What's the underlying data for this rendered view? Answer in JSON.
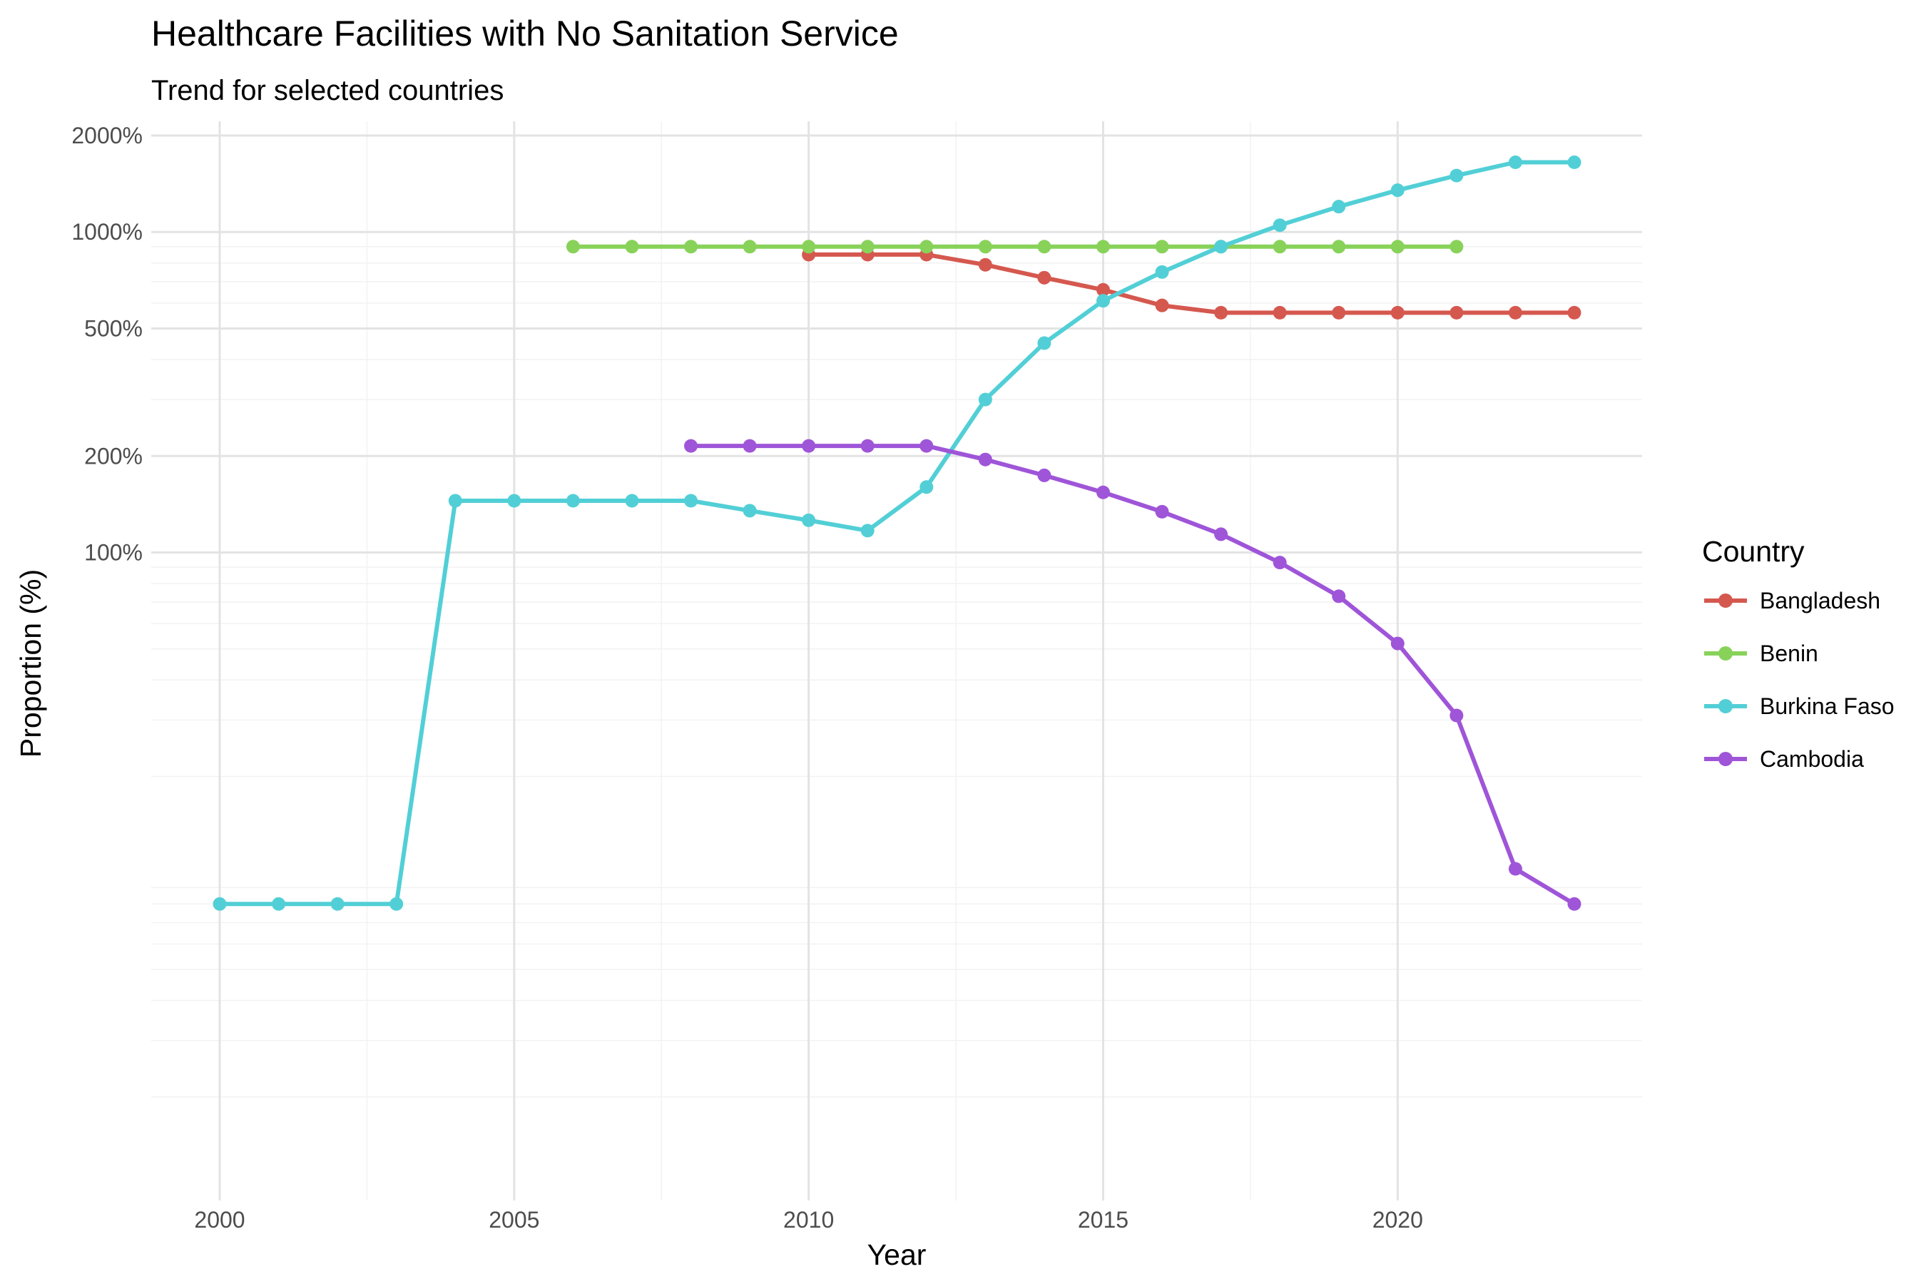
{
  "chart_data": {
    "type": "line",
    "title": "Healthcare Facilities with No Sanitation Service",
    "subtitle": "Trend for selected countries",
    "xlabel": "Year",
    "ylabel": "Proportion (%)",
    "xlim": [
      2000,
      2023
    ],
    "ylim": [
      1,
      2000
    ],
    "y_scale": "log10",
    "x_ticks": [
      2000,
      2005,
      2010,
      2015,
      2020
    ],
    "x_tick_labels": [
      "2000",
      "2005",
      "2010",
      "2015",
      "2020"
    ],
    "y_ticks": [
      100,
      200,
      500,
      1000,
      2000
    ],
    "y_tick_labels": [
      "100%",
      "200%",
      "500%",
      "1000%",
      "2000%"
    ],
    "grid": true,
    "legend": {
      "title": "Country",
      "position": "right"
    },
    "series": [
      {
        "name": "Bangladesh",
        "color": "#d5584f",
        "x": [
          2010,
          2011,
          2012,
          2013,
          2014,
          2015,
          2016,
          2017,
          2018,
          2019,
          2020,
          2021,
          2022,
          2023
        ],
        "y": [
          850,
          850,
          850,
          790,
          720,
          660,
          590,
          560,
          560,
          560,
          560,
          560,
          560,
          560
        ]
      },
      {
        "name": "Benin",
        "color": "#88d25a",
        "x": [
          2006,
          2007,
          2008,
          2009,
          2010,
          2011,
          2012,
          2013,
          2014,
          2015,
          2016,
          2017,
          2018,
          2019,
          2020,
          2021
        ],
        "y": [
          900,
          900,
          900,
          900,
          900,
          900,
          900,
          900,
          900,
          900,
          900,
          900,
          900,
          900,
          900,
          900
        ]
      },
      {
        "name": "Burkina Faso",
        "color": "#52cfd6",
        "x": [
          2000,
          2001,
          2002,
          2003,
          2004,
          2005,
          2006,
          2007,
          2008,
          2009,
          2010,
          2011,
          2012,
          2013,
          2014,
          2015,
          2016,
          2017,
          2018,
          2019,
          2020,
          2021,
          2022,
          2023
        ],
        "y": [
          8,
          8,
          8,
          8,
          145,
          145,
          145,
          145,
          145,
          135,
          126,
          117,
          160,
          300,
          450,
          610,
          750,
          900,
          1050,
          1200,
          1350,
          1500,
          1650,
          1650
        ]
      },
      {
        "name": "Cambodia",
        "color": "#9f55d8",
        "x": [
          2008,
          2009,
          2010,
          2011,
          2012,
          2013,
          2014,
          2015,
          2016,
          2017,
          2018,
          2019,
          2020,
          2021,
          2022,
          2023
        ],
        "y": [
          215,
          215,
          215,
          215,
          215,
          195,
          174,
          154,
          134,
          114,
          93,
          73,
          52,
          31,
          10.3,
          8
        ]
      }
    ]
  }
}
